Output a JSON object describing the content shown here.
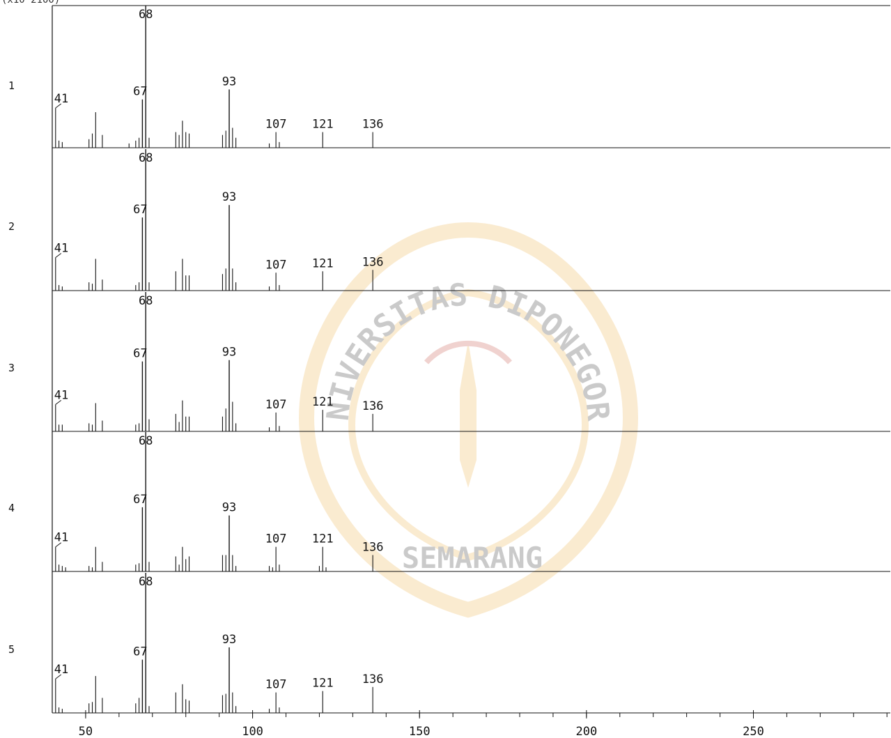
{
  "header": "(x10 2100)",
  "colors": {
    "ink": "#111111",
    "watermark": "#e9a630"
  },
  "watermark": {
    "line1": "UNIVERSITAS DIPONEGORO",
    "line2": "SEMARANG"
  },
  "chart_data": {
    "type": "bar",
    "title": "",
    "xlabel": "",
    "ylabel": "",
    "xlim": [
      40,
      291
    ],
    "ylim": [
      0,
      100
    ],
    "x_ticks": [
      50,
      100,
      150,
      200,
      250
    ],
    "panels": [
      {
        "name": "1",
        "peaks": [
          {
            "mz": 41,
            "i": 28,
            "label": "41"
          },
          {
            "mz": 42,
            "i": 5
          },
          {
            "mz": 43,
            "i": 4
          },
          {
            "mz": 51,
            "i": 6
          },
          {
            "mz": 52,
            "i": 10
          },
          {
            "mz": 53,
            "i": 25
          },
          {
            "mz": 55,
            "i": 9
          },
          {
            "mz": 63,
            "i": 3
          },
          {
            "mz": 65,
            "i": 5
          },
          {
            "mz": 66,
            "i": 7
          },
          {
            "mz": 67,
            "i": 34,
            "label": "67"
          },
          {
            "mz": 68,
            "i": 100,
            "label": "68"
          },
          {
            "mz": 69,
            "i": 7
          },
          {
            "mz": 77,
            "i": 11
          },
          {
            "mz": 78,
            "i": 9
          },
          {
            "mz": 79,
            "i": 19
          },
          {
            "mz": 80,
            "i": 11
          },
          {
            "mz": 81,
            "i": 10
          },
          {
            "mz": 91,
            "i": 9
          },
          {
            "mz": 92,
            "i": 12
          },
          {
            "mz": 93,
            "i": 41,
            "label": "93"
          },
          {
            "mz": 94,
            "i": 14
          },
          {
            "mz": 95,
            "i": 7
          },
          {
            "mz": 105,
            "i": 3
          },
          {
            "mz": 107,
            "i": 11,
            "label": "107"
          },
          {
            "mz": 108,
            "i": 4
          },
          {
            "mz": 121,
            "i": 11,
            "label": "121"
          },
          {
            "mz": 136,
            "i": 11,
            "label": "136"
          }
        ]
      },
      {
        "name": "2",
        "peaks": [
          {
            "mz": 41,
            "i": 24,
            "label": "41"
          },
          {
            "mz": 42,
            "i": 4
          },
          {
            "mz": 43,
            "i": 3
          },
          {
            "mz": 51,
            "i": 6
          },
          {
            "mz": 52,
            "i": 5
          },
          {
            "mz": 53,
            "i": 23
          },
          {
            "mz": 55,
            "i": 8
          },
          {
            "mz": 65,
            "i": 4
          },
          {
            "mz": 66,
            "i": 6
          },
          {
            "mz": 67,
            "i": 53,
            "label": "67"
          },
          {
            "mz": 68,
            "i": 100,
            "label": "68"
          },
          {
            "mz": 69,
            "i": 6
          },
          {
            "mz": 77,
            "i": 14
          },
          {
            "mz": 79,
            "i": 23
          },
          {
            "mz": 80,
            "i": 11
          },
          {
            "mz": 81,
            "i": 11
          },
          {
            "mz": 91,
            "i": 12
          },
          {
            "mz": 92,
            "i": 16
          },
          {
            "mz": 93,
            "i": 62,
            "label": "93"
          },
          {
            "mz": 94,
            "i": 16
          },
          {
            "mz": 95,
            "i": 6
          },
          {
            "mz": 105,
            "i": 3
          },
          {
            "mz": 107,
            "i": 13,
            "label": "107"
          },
          {
            "mz": 108,
            "i": 4
          },
          {
            "mz": 121,
            "i": 14,
            "label": "121"
          },
          {
            "mz": 136,
            "i": 15,
            "label": "136"
          }
        ]
      },
      {
        "name": "3",
        "peaks": [
          {
            "mz": 41,
            "i": 20,
            "label": "41"
          },
          {
            "mz": 42,
            "i": 5
          },
          {
            "mz": 43,
            "i": 5
          },
          {
            "mz": 51,
            "i": 6
          },
          {
            "mz": 52,
            "i": 5
          },
          {
            "mz": 53,
            "i": 21
          },
          {
            "mz": 55,
            "i": 8
          },
          {
            "mz": 65,
            "i": 5
          },
          {
            "mz": 66,
            "i": 6
          },
          {
            "mz": 67,
            "i": 52,
            "label": "67"
          },
          {
            "mz": 68,
            "i": 100,
            "label": "68"
          },
          {
            "mz": 69,
            "i": 9
          },
          {
            "mz": 77,
            "i": 13
          },
          {
            "mz": 78,
            "i": 7
          },
          {
            "mz": 79,
            "i": 23
          },
          {
            "mz": 80,
            "i": 11
          },
          {
            "mz": 81,
            "i": 11
          },
          {
            "mz": 91,
            "i": 11
          },
          {
            "mz": 92,
            "i": 17
          },
          {
            "mz": 93,
            "i": 53,
            "label": "93"
          },
          {
            "mz": 94,
            "i": 22
          },
          {
            "mz": 95,
            "i": 6
          },
          {
            "mz": 105,
            "i": 3
          },
          {
            "mz": 107,
            "i": 14,
            "label": "107"
          },
          {
            "mz": 108,
            "i": 4
          },
          {
            "mz": 121,
            "i": 16,
            "label": "121"
          },
          {
            "mz": 136,
            "i": 13,
            "label": "136"
          }
        ]
      },
      {
        "name": "4",
        "peaks": [
          {
            "mz": 41,
            "i": 18,
            "label": "41"
          },
          {
            "mz": 42,
            "i": 5
          },
          {
            "mz": 43,
            "i": 4
          },
          {
            "mz": 44,
            "i": 3
          },
          {
            "mz": 51,
            "i": 4
          },
          {
            "mz": 52,
            "i": 3
          },
          {
            "mz": 53,
            "i": 18
          },
          {
            "mz": 55,
            "i": 7
          },
          {
            "mz": 65,
            "i": 5
          },
          {
            "mz": 66,
            "i": 6
          },
          {
            "mz": 67,
            "i": 47,
            "label": "67"
          },
          {
            "mz": 68,
            "i": 100,
            "label": "68"
          },
          {
            "mz": 69,
            "i": 7
          },
          {
            "mz": 77,
            "i": 11
          },
          {
            "mz": 78,
            "i": 5
          },
          {
            "mz": 79,
            "i": 18
          },
          {
            "mz": 80,
            "i": 9
          },
          {
            "mz": 81,
            "i": 11
          },
          {
            "mz": 91,
            "i": 12
          },
          {
            "mz": 92,
            "i": 12
          },
          {
            "mz": 93,
            "i": 41,
            "label": "93"
          },
          {
            "mz": 94,
            "i": 12
          },
          {
            "mz": 95,
            "i": 4
          },
          {
            "mz": 105,
            "i": 4
          },
          {
            "mz": 106,
            "i": 3
          },
          {
            "mz": 107,
            "i": 18,
            "label": "107"
          },
          {
            "mz": 108,
            "i": 5
          },
          {
            "mz": 120,
            "i": 4
          },
          {
            "mz": 121,
            "i": 18,
            "label": "121"
          },
          {
            "mz": 122,
            "i": 3
          },
          {
            "mz": 136,
            "i": 12,
            "label": "136"
          }
        ]
      },
      {
        "name": "5",
        "peaks": [
          {
            "mz": 41,
            "i": 25,
            "label": "41"
          },
          {
            "mz": 42,
            "i": 4
          },
          {
            "mz": 43,
            "i": 3
          },
          {
            "mz": 51,
            "i": 7
          },
          {
            "mz": 52,
            "i": 8
          },
          {
            "mz": 53,
            "i": 27
          },
          {
            "mz": 55,
            "i": 11
          },
          {
            "mz": 65,
            "i": 7
          },
          {
            "mz": 66,
            "i": 11
          },
          {
            "mz": 67,
            "i": 39,
            "label": "67"
          },
          {
            "mz": 68,
            "i": 100,
            "label": "68"
          },
          {
            "mz": 69,
            "i": 5
          },
          {
            "mz": 77,
            "i": 15
          },
          {
            "mz": 79,
            "i": 21
          },
          {
            "mz": 80,
            "i": 10
          },
          {
            "mz": 81,
            "i": 9
          },
          {
            "mz": 91,
            "i": 13
          },
          {
            "mz": 92,
            "i": 14
          },
          {
            "mz": 93,
            "i": 48,
            "label": "93"
          },
          {
            "mz": 94,
            "i": 15
          },
          {
            "mz": 95,
            "i": 5
          },
          {
            "mz": 105,
            "i": 3
          },
          {
            "mz": 107,
            "i": 15,
            "label": "107"
          },
          {
            "mz": 108,
            "i": 4
          },
          {
            "mz": 121,
            "i": 16,
            "label": "121"
          },
          {
            "mz": 136,
            "i": 19,
            "label": "136"
          }
        ]
      }
    ]
  }
}
